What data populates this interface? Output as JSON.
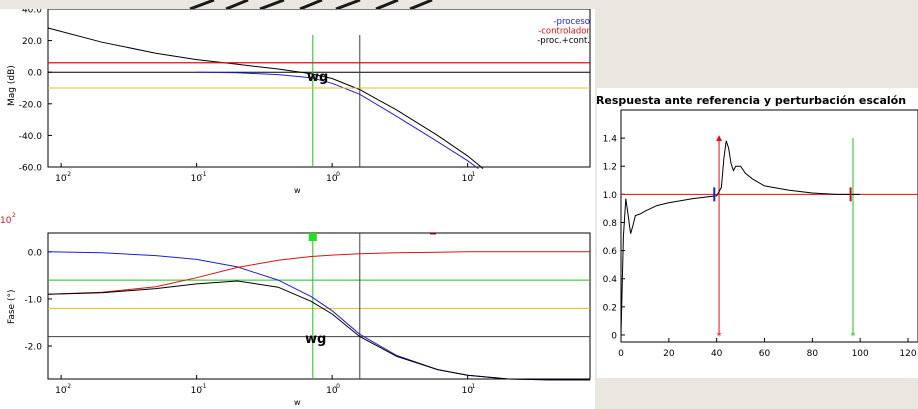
{
  "chart_data": [
    {
      "type": "line",
      "panel": "bode-magnitude",
      "title": "",
      "xlabel": "w",
      "ylabel": "Mag (dB)",
      "xscale": "log",
      "xlim": [
        0.008,
        80
      ],
      "ylim": [
        -60,
        40
      ],
      "yticks": [
        "40.0",
        "20.0",
        "0.0",
        "-20.0",
        "-40.0",
        "-60.0"
      ],
      "xticks": [
        "10",
        "10",
        "10",
        "10"
      ],
      "xtick_exponents": [
        "-2",
        "-1",
        "0",
        "1"
      ],
      "legend": [
        "-proceso",
        "-controlador",
        "-proc.+cont."
      ],
      "legend_position": "top-right",
      "annotation": "wg",
      "colors": {
        "proceso": "#2020d0",
        "controlador": "#e01010",
        "lazo": "#000000",
        "amarillo": "#e0c020",
        "verde": "#20c020",
        "gris": "#404040"
      },
      "series": [
        {
          "name": "-proc.+cont.",
          "x": [
            0.008,
            0.02,
            0.05,
            0.1,
            0.2,
            0.4,
            0.7,
            1.0,
            1.6,
            3.0,
            6.0,
            10.0,
            13.0
          ],
          "y": [
            28,
            19,
            12,
            8,
            5,
            2,
            -1,
            -4,
            -11,
            -24,
            -40,
            -53,
            -61
          ]
        },
        {
          "name": "-proceso",
          "x": [
            0.1,
            0.2,
            0.4,
            0.7,
            1.0,
            1.6,
            3.0,
            6.0,
            10.0,
            12.0
          ],
          "y": [
            0,
            -0.4,
            -1.5,
            -3.5,
            -7,
            -14,
            -28,
            -44,
            -56,
            -61
          ]
        },
        {
          "name": "-controlador",
          "x": [
            0.008,
            80
          ],
          "y": [
            6,
            6
          ]
        },
        {
          "name": "amarillo",
          "x": [
            0.008,
            80
          ],
          "y": [
            -10,
            -10
          ]
        }
      ],
      "vlines": [
        {
          "x": 0.72,
          "color": "#20c020"
        },
        {
          "x": 1.6,
          "color": "#404040"
        }
      ]
    },
    {
      "type": "line",
      "panel": "bode-phase",
      "title": "",
      "xlabel": "w",
      "ylabel": "Fase (°)",
      "scale_label": "x10",
      "scale_exponent": "2",
      "xscale": "log",
      "xlim": [
        0.008,
        80
      ],
      "ylim": [
        -2.7,
        0.4
      ],
      "yticks": [
        "0.0",
        "-1.0",
        "-2.0"
      ],
      "xticks": [
        "10",
        "10",
        "10",
        "10"
      ],
      "xtick_exponents": [
        "-2",
        "-1",
        "0",
        "1"
      ],
      "annotation": "wg",
      "series": [
        {
          "name": "proceso",
          "x": [
            0.008,
            0.02,
            0.05,
            0.1,
            0.2,
            0.4,
            0.7,
            1.0,
            1.6,
            3.0,
            6.0,
            10.0,
            20.0,
            40.0,
            80.0
          ],
          "y": [
            0.0,
            -0.02,
            -0.08,
            -0.16,
            -0.32,
            -0.6,
            -0.95,
            -1.25,
            -1.75,
            -2.2,
            -2.5,
            -2.62,
            -2.7,
            -2.72,
            -2.72
          ]
        },
        {
          "name": "controlador",
          "x": [
            0.008,
            0.02,
            0.05,
            0.1,
            0.2,
            0.4,
            0.7,
            1.0,
            1.6,
            3.0,
            6.0,
            10.0,
            80.0
          ],
          "y": [
            -0.9,
            -0.86,
            -0.74,
            -0.55,
            -0.33,
            -0.18,
            -0.1,
            -0.07,
            -0.04,
            -0.02,
            -0.01,
            0.0,
            0.0
          ]
        },
        {
          "name": "proc.+cont.",
          "x": [
            0.008,
            0.02,
            0.05,
            0.1,
            0.2,
            0.4,
            0.7,
            1.0,
            1.6,
            3.0,
            6.0,
            10.0,
            20.0,
            40.0,
            80.0
          ],
          "y": [
            -0.9,
            -0.87,
            -0.78,
            -0.68,
            -0.62,
            -0.75,
            -1.05,
            -1.32,
            -1.8,
            -2.22,
            -2.5,
            -2.62,
            -2.7,
            -2.72,
            -2.72
          ]
        }
      ],
      "hlines": [
        {
          "y": -0.6,
          "color": "#20c020"
        },
        {
          "y": -1.2,
          "color": "#e0c020"
        },
        {
          "y": -1.8,
          "color": "#404040"
        }
      ],
      "vlines": [
        {
          "x": 0.72,
          "color": "#20c020"
        },
        {
          "x": 1.6,
          "color": "#404040"
        }
      ]
    },
    {
      "type": "line",
      "panel": "step-response",
      "title": "Respuesta ante referencia y perturbación escalón",
      "xlabel": "",
      "ylabel": "",
      "xlim": [
        0,
        120
      ],
      "ylim": [
        -0.05,
        1.6
      ],
      "xticks": [
        "0",
        "20",
        "40",
        "60",
        "80",
        "100",
        "120"
      ],
      "yticks": [
        "0",
        "0.2",
        "0.4",
        "0.6",
        "0.8",
        "1.0",
        "1.2",
        "1.4"
      ],
      "series": [
        {
          "name": "salida",
          "x": [
            0,
            1,
            2,
            3,
            4,
            5,
            6,
            8,
            10,
            15,
            20,
            30,
            40,
            42,
            43,
            44,
            45,
            46,
            47,
            48,
            50,
            52,
            55,
            60,
            70,
            80,
            90,
            100
          ],
          "y": [
            0,
            0.7,
            0.97,
            0.85,
            0.72,
            0.78,
            0.85,
            0.86,
            0.88,
            0.92,
            0.94,
            0.97,
            0.99,
            1.05,
            1.25,
            1.38,
            1.33,
            1.22,
            1.17,
            1.2,
            1.2,
            1.15,
            1.11,
            1.06,
            1.03,
            1.01,
            1.0,
            1.0
          ]
        },
        {
          "name": "referencia",
          "x": [
            0,
            122
          ],
          "y": [
            1.0,
            1.0
          ]
        }
      ],
      "markers": [
        {
          "x": 39,
          "y": 1.0,
          "color": "#2020d0"
        },
        {
          "x": 41,
          "y": 1.4,
          "color": "#e01010"
        },
        {
          "x": 96,
          "y": 1.0,
          "color": "#c01010"
        },
        {
          "x": 41,
          "y": 0.0,
          "color": "#e01010"
        },
        {
          "x": 97,
          "y": 0.0,
          "color": "#20c020"
        }
      ]
    }
  ]
}
